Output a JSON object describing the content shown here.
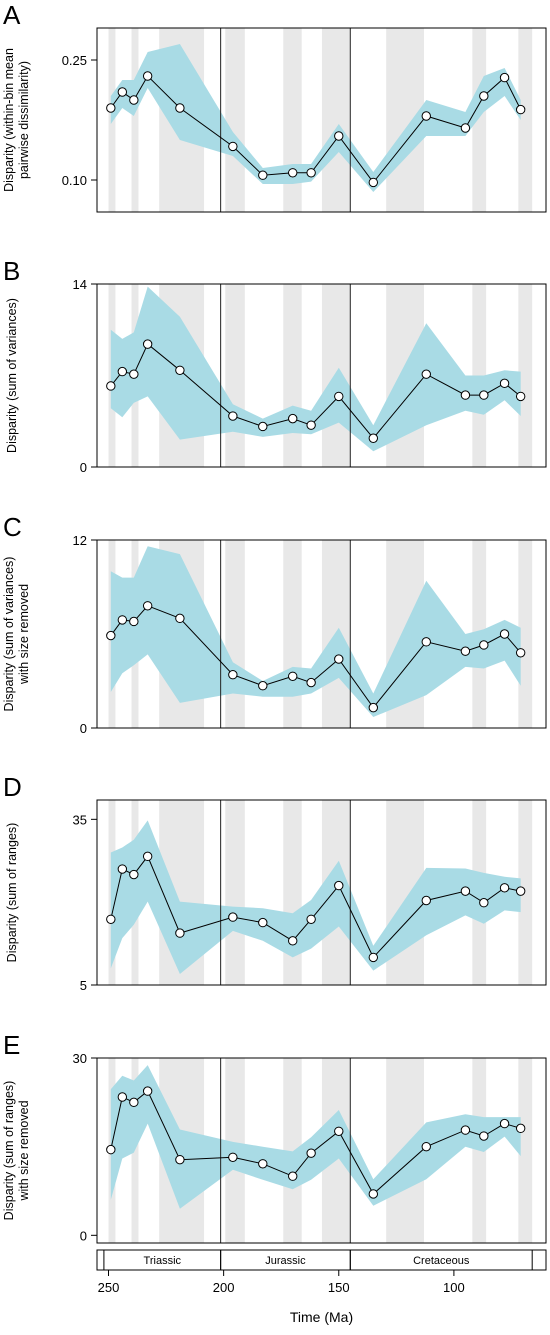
{
  "x_axis": {
    "label": "Time (Ma)",
    "range": [
      255,
      60
    ],
    "ticks": [
      250,
      200,
      150,
      100
    ]
  },
  "stage_bands": [
    [
      250,
      247
    ],
    [
      240,
      237
    ],
    [
      228,
      208.5
    ],
    [
      199.3,
      190.8
    ],
    [
      174.1,
      166.1
    ],
    [
      157.3,
      145
    ],
    [
      129.4,
      113
    ],
    [
      92,
      86
    ],
    [
      72,
      66
    ]
  ],
  "boundaries": [
    201.3,
    145
  ],
  "periods": [
    {
      "name": "Triassic",
      "start": 252,
      "end": 201.3
    },
    {
      "name": "Jurassic",
      "start": 201.3,
      "end": 145
    },
    {
      "name": "Cretaceous",
      "start": 145,
      "end": 66
    }
  ],
  "colors": {
    "ribbon": "#a9dbe5",
    "band": "#e8e8e8",
    "line": "#000000",
    "point_fill": "#ffffff"
  },
  "chart_data": [
    {
      "type": "line",
      "letter": "A",
      "ylabel_lines": [
        "Disparity (within-bin mean",
        "pairwise dissimilarity)"
      ],
      "ylim": [
        0.06,
        0.29
      ],
      "yticks": [
        0.1,
        0.25
      ],
      "ytick_labels": [
        "0.10",
        "0.25"
      ],
      "x": [
        249,
        244,
        239,
        233,
        219,
        196,
        183,
        170,
        162,
        150,
        135,
        112,
        95,
        87,
        78,
        71
      ],
      "y": [
        0.19,
        0.21,
        0.2,
        0.23,
        0.19,
        0.142,
        0.106,
        0.109,
        0.109,
        0.155,
        0.097,
        0.18,
        0.165,
        0.205,
        0.228,
        0.188
      ],
      "lower": [
        0.17,
        0.19,
        0.18,
        0.215,
        0.15,
        0.13,
        0.095,
        0.095,
        0.098,
        0.135,
        0.085,
        0.155,
        0.155,
        0.185,
        0.205,
        0.175
      ],
      "upper": [
        0.205,
        0.225,
        0.225,
        0.26,
        0.27,
        0.16,
        0.115,
        0.12,
        0.12,
        0.17,
        0.11,
        0.2,
        0.185,
        0.23,
        0.24,
        0.2
      ]
    },
    {
      "type": "line",
      "letter": "B",
      "ylabel_lines": [
        "Disparity (sum of variances)"
      ],
      "ylim": [
        0,
        14
      ],
      "yticks": [
        0,
        14
      ],
      "ytick_labels": [
        "0",
        "14"
      ],
      "x": [
        249,
        244,
        239,
        233,
        219,
        196,
        183,
        170,
        162,
        150,
        135,
        112,
        95,
        87,
        78,
        71
      ],
      "y": [
        6.2,
        7.3,
        7.1,
        9.4,
        7.4,
        3.9,
        3.1,
        3.7,
        3.2,
        5.4,
        2.2,
        7.1,
        5.5,
        5.5,
        6.4,
        5.4
      ],
      "lower": [
        4.5,
        3.8,
        4.9,
        5.4,
        2.1,
        2.7,
        2.3,
        2.6,
        2.5,
        3.4,
        1.2,
        3.2,
        4.3,
        4.0,
        5.1,
        3.9
      ],
      "upper": [
        10.5,
        9.8,
        10.3,
        13.8,
        11.5,
        4.8,
        3.7,
        4.7,
        4.3,
        7.6,
        3.2,
        11.0,
        7.0,
        7.0,
        7.4,
        7.3
      ]
    },
    {
      "type": "line",
      "letter": "C",
      "ylabel_lines": [
        "Disparity (sum of variances)",
        "with size removed"
      ],
      "ylim": [
        0,
        12
      ],
      "yticks": [
        0,
        12
      ],
      "ytick_labels": [
        "0",
        "12"
      ],
      "x": [
        249,
        244,
        239,
        233,
        219,
        196,
        183,
        170,
        162,
        150,
        135,
        112,
        95,
        87,
        78,
        71
      ],
      "y": [
        5.9,
        6.9,
        6.8,
        7.8,
        7.0,
        3.4,
        2.7,
        3.3,
        2.9,
        4.4,
        1.3,
        5.5,
        4.9,
        5.3,
        6.0,
        4.8
      ],
      "lower": [
        2.3,
        3.5,
        4.0,
        4.7,
        1.6,
        2.2,
        2.0,
        2.0,
        2.2,
        3.2,
        0.7,
        2.1,
        3.9,
        3.8,
        4.3,
        2.7
      ],
      "upper": [
        10.0,
        9.6,
        9.6,
        11.6,
        11.1,
        4.2,
        3.0,
        3.9,
        3.8,
        6.4,
        2.2,
        9.4,
        6.0,
        6.3,
        6.9,
        6.4
      ]
    },
    {
      "type": "line",
      "letter": "D",
      "ylabel_lines": [
        "Disparity (sum of ranges)"
      ],
      "ylim": [
        5,
        38.5
      ],
      "yticks": [
        5,
        35
      ],
      "ytick_labels": [
        "5",
        "35"
      ],
      "x": [
        249,
        244,
        239,
        233,
        219,
        196,
        183,
        170,
        162,
        150,
        135,
        112,
        95,
        87,
        78,
        71
      ],
      "y": [
        16.9,
        26.0,
        25.0,
        28.3,
        14.4,
        17.3,
        16.3,
        13.0,
        16.9,
        23.0,
        10.0,
        20.3,
        22.0,
        19.9,
        22.6,
        22.0
      ],
      "lower": [
        8.0,
        13.5,
        15.9,
        20.1,
        7.0,
        14.8,
        13.0,
        10.0,
        11.6,
        15.6,
        7.6,
        14.0,
        17.6,
        16.1,
        18.5,
        18.2
      ],
      "upper": [
        29.0,
        29.9,
        31.3,
        34.8,
        20.1,
        19.2,
        18.9,
        18.0,
        20.4,
        27.5,
        12.1,
        26.2,
        26.1,
        25.3,
        24.6,
        24.3
      ]
    },
    {
      "type": "line",
      "letter": "E",
      "ylabel_lines": [
        "Disparity (sum of ranges)",
        "with size removed"
      ],
      "ylim": [
        -1.3,
        30
      ],
      "yticks": [
        0,
        30
      ],
      "ytick_labels": [
        "0",
        "30"
      ],
      "x": [
        249,
        244,
        239,
        233,
        219,
        196,
        183,
        170,
        162,
        150,
        135,
        112,
        95,
        87,
        78,
        71
      ],
      "y": [
        14.5,
        23.4,
        22.5,
        24.4,
        12.8,
        13.2,
        12.1,
        10.0,
        13.9,
        17.6,
        7.0,
        15.0,
        17.8,
        16.8,
        18.9,
        18.1
      ],
      "lower": [
        6.0,
        13.0,
        14.0,
        18.9,
        4.5,
        11.1,
        9.4,
        7.8,
        9.4,
        13.0,
        5.0,
        9.5,
        15.0,
        14.1,
        16.7,
        13.4
      ],
      "upper": [
        24.7,
        27.0,
        26.2,
        28.8,
        17.9,
        15.8,
        15.0,
        14.2,
        16.6,
        21.2,
        9.5,
        19.1,
        20.5,
        20.0,
        20.0,
        20.0
      ]
    }
  ]
}
